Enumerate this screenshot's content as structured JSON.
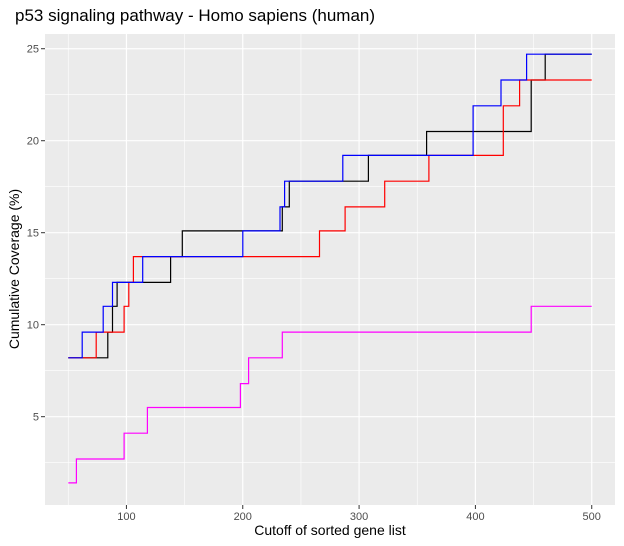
{
  "chart_data": {
    "type": "line",
    "title": "p53 signaling pathway - Homo sapiens (human)",
    "xlabel": "Cutoff of sorted gene list",
    "ylabel": "Cumulative Coverage (%)",
    "xlim": [
      30,
      520
    ],
    "ylim": [
      0.2,
      25.8
    ],
    "xticks": [
      100,
      200,
      300,
      400,
      500
    ],
    "yticks": [
      5,
      10,
      15,
      20,
      25
    ],
    "grid": true,
    "legend": "none",
    "series": [
      {
        "color": "#000000",
        "x": [
          50,
          84,
          88,
          92,
          138,
          148,
          234,
          240,
          308,
          358,
          448,
          460,
          500
        ],
        "y": [
          8.2,
          9.6,
          11.0,
          12.3,
          13.7,
          15.1,
          16.4,
          17.8,
          19.2,
          20.5,
          23.3,
          24.7,
          24.7
        ]
      },
      {
        "color": "#ff0000",
        "x": [
          50,
          74,
          98,
          102,
          106,
          136,
          266,
          288,
          322,
          360,
          424,
          438,
          448,
          500
        ],
        "y": [
          8.2,
          9.6,
          11.0,
          12.3,
          13.7,
          13.7,
          15.1,
          16.4,
          17.8,
          19.2,
          21.9,
          23.3,
          23.3,
          23.3
        ]
      },
      {
        "color": "#0000ff",
        "x": [
          50,
          62,
          80,
          88,
          114,
          200,
          232,
          236,
          286,
          302,
          398,
          414,
          422,
          426,
          444,
          500
        ],
        "y": [
          8.2,
          9.6,
          11.0,
          12.3,
          13.7,
          15.1,
          16.4,
          17.8,
          19.2,
          19.2,
          21.9,
          21.9,
          23.3,
          23.3,
          24.7,
          24.7
        ]
      },
      {
        "color": "#ff00ff",
        "x": [
          50,
          57,
          98,
          118,
          198,
          205,
          234,
          448,
          500
        ],
        "y": [
          1.4,
          2.7,
          4.1,
          5.5,
          6.8,
          8.2,
          9.6,
          11.0,
          11.0
        ]
      }
    ]
  }
}
